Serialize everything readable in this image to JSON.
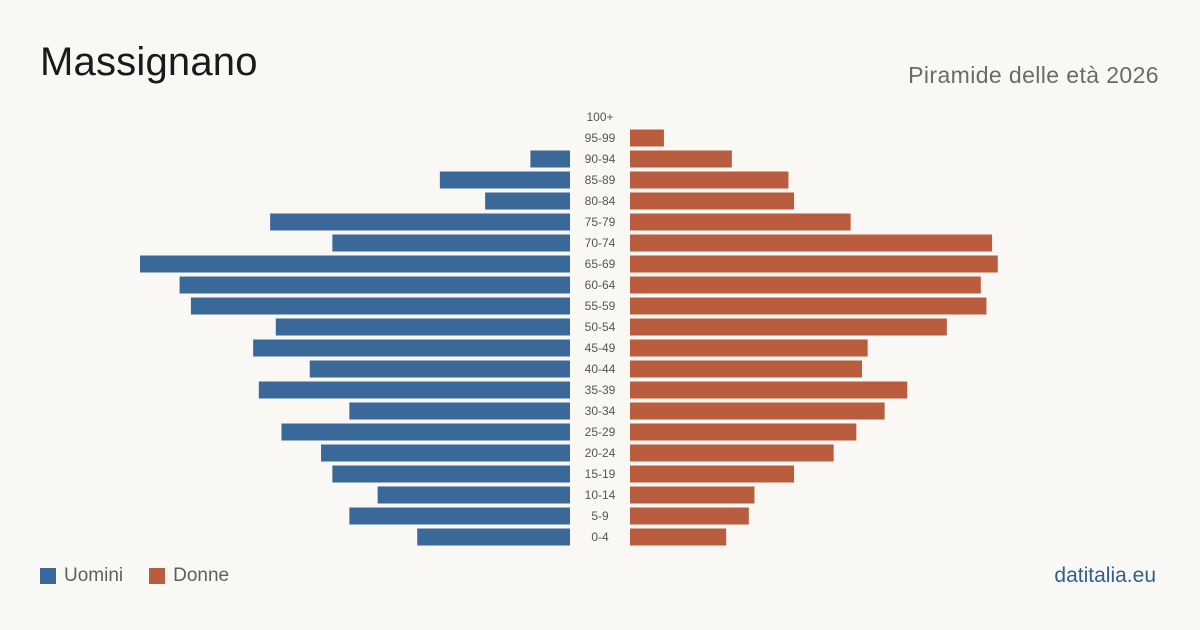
{
  "header": {
    "title": "Massignano",
    "subtitle": "Piramide delle età 2026"
  },
  "legend": {
    "items": [
      {
        "label": "Uomini",
        "color": "#3a6898"
      },
      {
        "label": "Donne",
        "color": "#b95d3e"
      }
    ]
  },
  "brand": "datitalia.eu",
  "chart_data": {
    "type": "bar",
    "orientation": "horizontal-population-pyramid",
    "categories": [
      "100+",
      "95-99",
      "90-94",
      "85-89",
      "80-84",
      "75-79",
      "70-74",
      "65-69",
      "60-64",
      "55-59",
      "50-54",
      "45-49",
      "40-44",
      "35-39",
      "30-34",
      "25-29",
      "20-24",
      "15-19",
      "10-14",
      "5-9",
      "0-4"
    ],
    "series": [
      {
        "name": "Uomini",
        "color": "#3a6898",
        "values": [
          0,
          0,
          7,
          23,
          15,
          53,
          42,
          76,
          69,
          67,
          52,
          56,
          46,
          55,
          39,
          51,
          44,
          42,
          34,
          39,
          27
        ]
      },
      {
        "name": "Donne",
        "color": "#b95d3e",
        "values": [
          0,
          6,
          18,
          28,
          29,
          39,
          64,
          65,
          62,
          63,
          56,
          42,
          41,
          49,
          45,
          40,
          36,
          29,
          22,
          21,
          17
        ]
      }
    ],
    "xlim": [
      0,
      76
    ],
    "grid": false,
    "legend_position": "bottom-left"
  }
}
